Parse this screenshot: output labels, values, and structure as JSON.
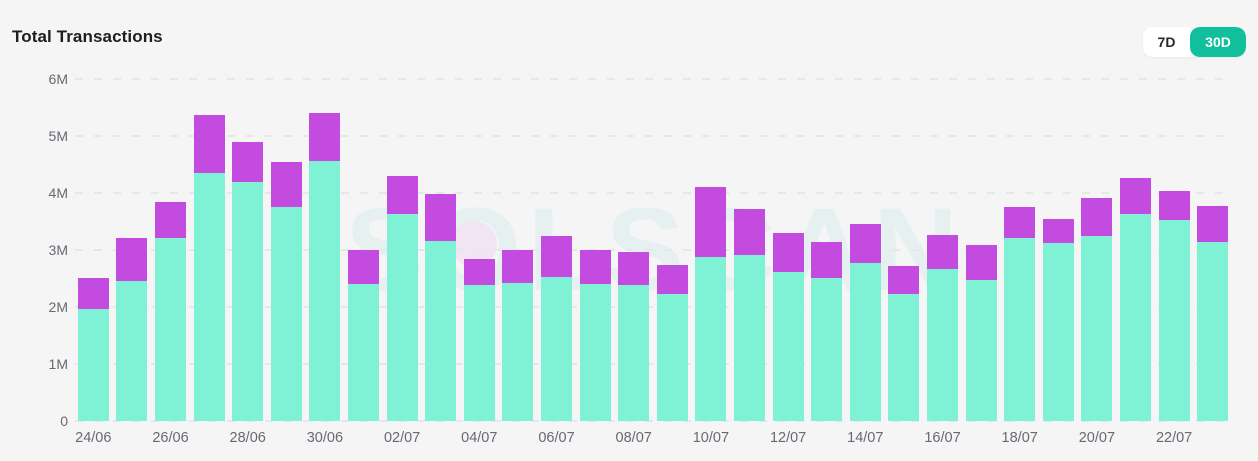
{
  "header": {
    "title": "Total Transactions"
  },
  "range_toggle": {
    "options": [
      {
        "label": "7D",
        "selected": false
      },
      {
        "label": "30D",
        "selected": true
      }
    ]
  },
  "watermark": "SOLSCAN",
  "colors": {
    "background": "#f5f5f6",
    "bar_teal": "#7FF1D5",
    "bar_purple": "#C44BE0",
    "toggle_active_bg": "#10BF9B",
    "toggle_active_text": "#ffffff",
    "toggle_inactive_bg": "#ffffff",
    "toggle_inactive_text": "#27272a",
    "grid_line": "#e7e7ea",
    "axis_text": "#686972",
    "title_text": "#1d1d22"
  },
  "chart_data": {
    "type": "bar",
    "stacked": true,
    "title": "Total Transactions",
    "unit": "millions of transactions",
    "ylim_millions": [
      0,
      6
    ],
    "ytick_labels": [
      "0",
      "1M",
      "2M",
      "3M",
      "4M",
      "5M",
      "6M"
    ],
    "grid": "horizontal-dashed",
    "legend": "none",
    "categories": [
      "24/06",
      "25/06",
      "26/06",
      "27/06",
      "28/06",
      "29/06",
      "30/06",
      "01/07",
      "02/07",
      "03/07",
      "04/07",
      "05/07",
      "06/07",
      "07/07",
      "08/07",
      "09/07",
      "10/07",
      "11/07",
      "12/07",
      "13/07",
      "14/07",
      "15/07",
      "16/07",
      "17/07",
      "18/07",
      "19/07",
      "20/07",
      "21/07",
      "22/07",
      "23/07"
    ],
    "xtick_labels_shown": [
      "24/06",
      "26/06",
      "28/06",
      "30/06",
      "02/07",
      "04/07",
      "06/07",
      "08/07",
      "10/07",
      "12/07",
      "14/07",
      "16/07",
      "18/07",
      "20/07",
      "22/07"
    ],
    "series": [
      {
        "name": "teal-bottom-segment",
        "color": "#7FF1D5",
        "values_millions": [
          1.96,
          2.46,
          3.21,
          4.35,
          4.19,
          3.76,
          4.56,
          2.41,
          3.63,
          3.16,
          2.38,
          2.42,
          2.52,
          2.41,
          2.39,
          2.23,
          2.88,
          2.91,
          2.62,
          2.51,
          2.77,
          2.23,
          2.66,
          2.47,
          3.21,
          3.12,
          3.25,
          3.63,
          3.52,
          3.14
        ]
      },
      {
        "name": "purple-top-segment",
        "color": "#C44BE0",
        "values_millions": [
          0.55,
          0.75,
          0.64,
          1.02,
          0.71,
          0.79,
          0.85,
          0.59,
          0.66,
          0.82,
          0.47,
          0.58,
          0.72,
          0.59,
          0.58,
          0.5,
          1.22,
          0.81,
          0.67,
          0.63,
          0.68,
          0.49,
          0.6,
          0.61,
          0.55,
          0.43,
          0.66,
          0.63,
          0.51,
          0.63
        ]
      }
    ]
  }
}
